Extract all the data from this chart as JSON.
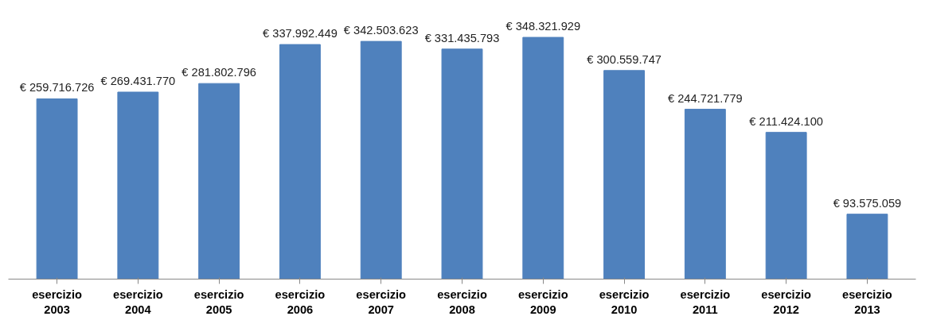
{
  "chart_data": {
    "type": "bar",
    "categories": [
      "esercizio 2003",
      "esercizio 2004",
      "esercizio 2005",
      "esercizio 2006",
      "esercizio 2007",
      "esercizio 2008",
      "esercizio 2009",
      "esercizio 2010",
      "esercizio 2011",
      "esercizio 2012",
      "esercizio 2013"
    ],
    "values": [
      259716726,
      269431770,
      281802796,
      337992449,
      342503623,
      331435793,
      348321929,
      300559747,
      244721779,
      211424100,
      93575059
    ],
    "value_labels": [
      "€ 259.716.726",
      "€ 269.431.770",
      "€ 281.802.796",
      "€ 337.992.449",
      "€ 342.503.623",
      "€ 331.435.793",
      "€ 348.321.929",
      "€ 300.559.747",
      "€ 244.721.779",
      "€ 211.424.100",
      "€ 93.575.059"
    ],
    "color": "#4f81bd",
    "grid": false
  }
}
